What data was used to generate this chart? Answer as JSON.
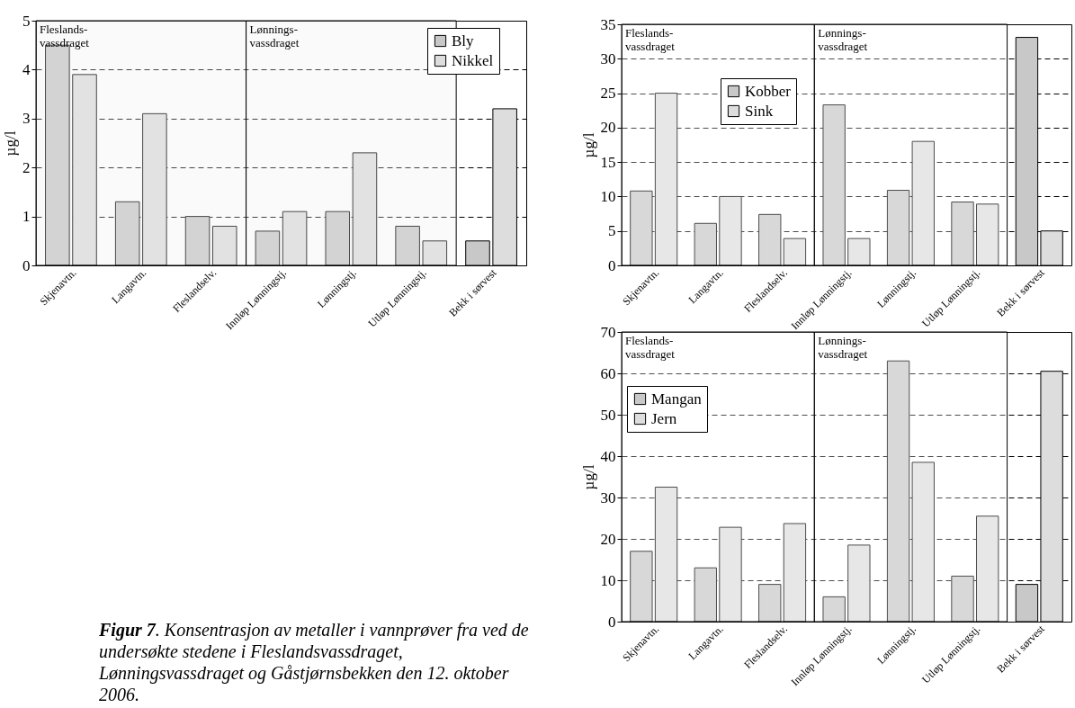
{
  "chart_data": [
    {
      "type": "bar",
      "ylabel": "µg/l",
      "categories": [
        "Skjenavtn.",
        "Langavtn.",
        "Fleslandselv.",
        "Innløp Lønningstj.",
        "Lønningstj.",
        "Utløp Lønningstj.",
        "Bekk i sørvest"
      ],
      "series": [
        {
          "name": "Bly",
          "color": "#c8c8c8",
          "values": [
            4.5,
            1.3,
            1.0,
            0.7,
            1.1,
            0.8,
            0.5
          ]
        },
        {
          "name": "Nikkel",
          "color": "#dddddd",
          "values": [
            3.9,
            3.1,
            0.8,
            1.1,
            2.3,
            0.5,
            3.2
          ]
        }
      ],
      "ylim": [
        0,
        5
      ],
      "yticks": [
        0,
        1,
        2,
        3,
        4,
        5
      ],
      "grid": "y",
      "legend": "top right",
      "bands": [
        {
          "axis": "x",
          "from": "Skjenavtn.",
          "to": "Fleslandselv.",
          "label": "Fleslands-\nvassdraget",
          "color": "#eeeeee"
        },
        {
          "axis": "x",
          "from": "Innløp Lønningstj.",
          "to": "Utløp Lønningstj.",
          "label": "Lønnings-\nvassdraget",
          "color": "#eeeeee"
        }
      ],
      "annotations": [
        "Figur 7. Konsentrasjon av metaller i vannprøver fra ved de undersøkte stedene i Fleslandsvassdraget, Lønningsvassdraget og Gåstjørnsbekken den 12. oktober 2006."
      ]
    },
    {
      "type": "bar",
      "ylabel": "µg/l",
      "categories": [
        "Skjenavtn.",
        "Langavtn.",
        "Fleslandselv.",
        "Innløp Lønningstj.",
        "Lønningstj.",
        "Utløp Lønningstj.",
        "Bekk i sørvest"
      ],
      "series": [
        {
          "name": "Kobber",
          "color": "#c8c8c8",
          "values": [
            10.8,
            6.1,
            7.4,
            23.3,
            10.9,
            9.2,
            33.1
          ]
        },
        {
          "name": "Sink",
          "color": "#dddddd",
          "values": [
            25,
            10,
            3.9,
            3.9,
            18,
            8.9,
            5
          ]
        }
      ],
      "ylim": [
        0,
        35
      ],
      "yticks": [
        0,
        5,
        10,
        15,
        20,
        25,
        30,
        35
      ],
      "grid": "y",
      "legend": "top",
      "bands": [
        {
          "axis": "x",
          "from": "Skjenavtn.",
          "to": "Fleslandselv.",
          "label": "Fleslands-\nvassdraget"
        },
        {
          "axis": "x",
          "from": "Innløp Lønningstj.",
          "to": "Utløp Lønningstj.",
          "label": "Lønnings-\nvassdraget"
        }
      ]
    },
    {
      "type": "bar",
      "ylabel": "µg/l",
      "categories": [
        "Skjenavtn.",
        "Langavtn.",
        "Fleslandselv.",
        "Innløp Lønningstj.",
        "Lønningstj.",
        "Utløp Lønningstj.",
        "Bekk i sørvest"
      ],
      "series": [
        {
          "name": "Mangan",
          "color": "#c8c8c8",
          "values": [
            17,
            13,
            9,
            6,
            63,
            11,
            9
          ]
        },
        {
          "name": "Jern",
          "color": "#dddddd",
          "values": [
            32.5,
            22.8,
            23.7,
            18.5,
            38.5,
            25.5,
            60.5
          ]
        }
      ],
      "ylim": [
        0,
        70
      ],
      "yticks": [
        0,
        10,
        20,
        30,
        40,
        50,
        60,
        70
      ],
      "grid": "y",
      "legend": "top left",
      "bands": [
        {
          "axis": "x",
          "from": "Skjenavtn.",
          "to": "Fleslandselv.",
          "label": "Fleslands-\nvassdraget"
        },
        {
          "axis": "x",
          "from": "Innløp Lønningstj.",
          "to": "Utløp Lønningstj.",
          "label": "Lønnings-\nvassdraget"
        }
      ]
    }
  ]
}
